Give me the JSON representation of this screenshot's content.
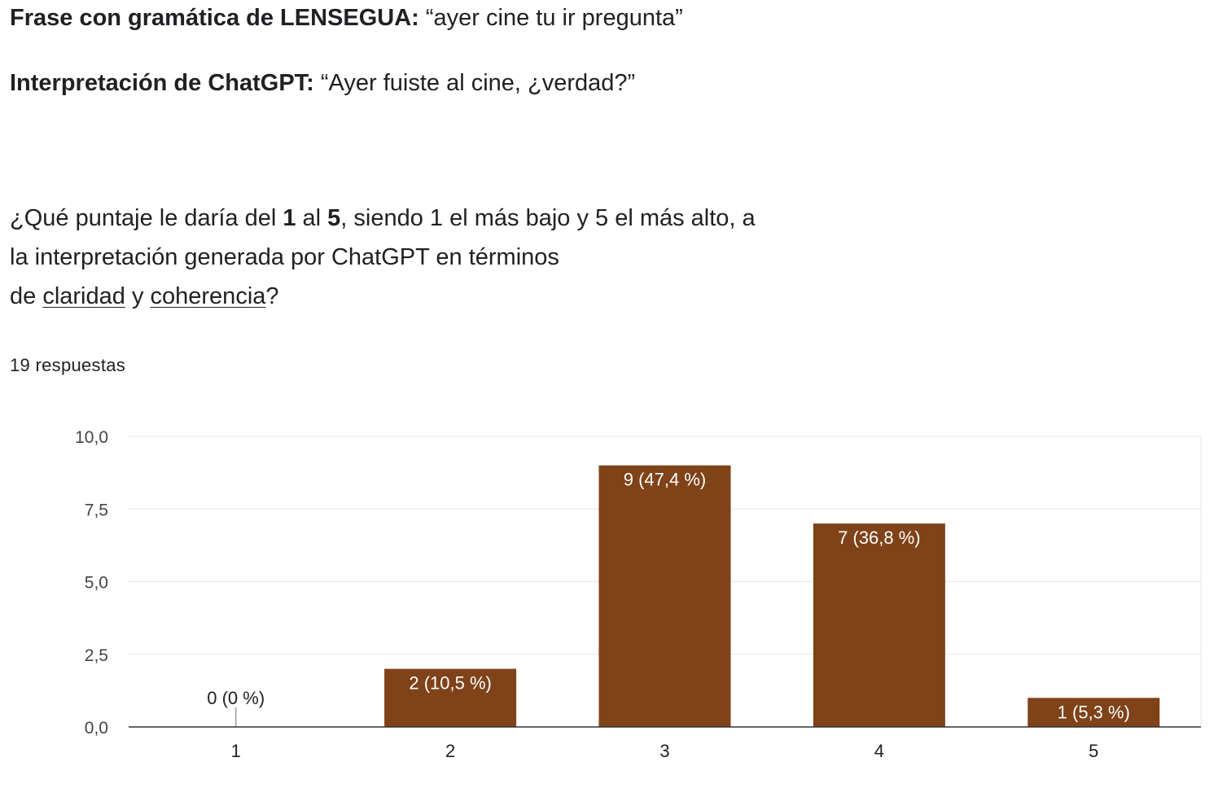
{
  "header": {
    "phrase_label": "Frase con gramática de LENSEGUA:",
    "phrase_value": "“ayer cine tu ir pregunta”",
    "interp_label": "Interpretación de ChatGPT:",
    "interp_value": "“Ayer fuiste al cine, ¿verdad?”"
  },
  "question": {
    "l1_a": "¿Qué puntaje le daría del ",
    "l1_b": "1",
    "l1_c": " al ",
    "l1_d": "5",
    "l1_e": ", siendo 1 el más bajo y 5 el más alto, a",
    "l2": "la interpretación generada por ChatGPT en términos",
    "l3_a": "de ",
    "l3_b": "claridad",
    "l3_c": " y ",
    "l3_d": "coherencia",
    "l3_e": "?"
  },
  "responses": "19 respuestas",
  "chart_data": {
    "type": "bar",
    "categories": [
      "1",
      "2",
      "3",
      "4",
      "5"
    ],
    "values": [
      0,
      2,
      9,
      7,
      1
    ],
    "data_labels": [
      "0 (0 %)",
      "2 (10,5 %)",
      "9 (47,4 %)",
      "7 (36,8 %)",
      "1 (5,3 %)"
    ],
    "y_ticks": [
      "0,0",
      "2,5",
      "5,0",
      "7,5",
      "10,0"
    ],
    "ylim": [
      0,
      10
    ],
    "bar_color": "#7f4219",
    "grid": true,
    "legend": "none"
  }
}
